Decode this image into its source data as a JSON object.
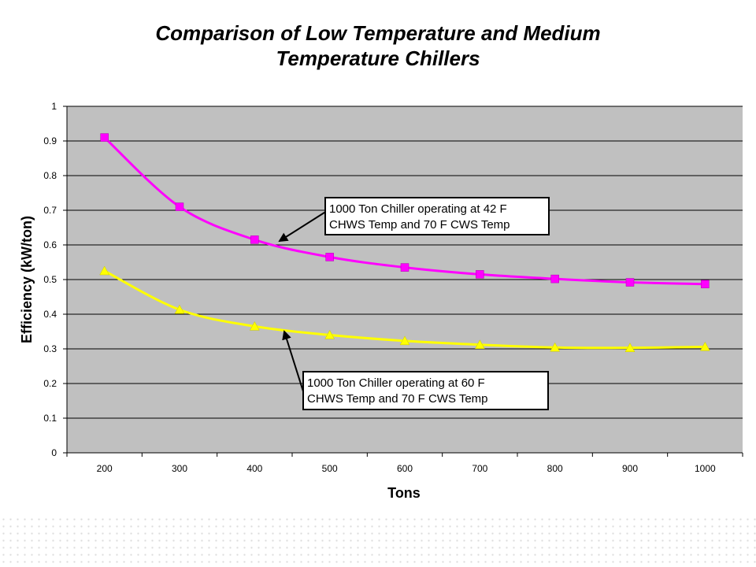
{
  "chart_data": {
    "type": "line",
    "title_line1": "Comparison of Low Temperature and Medium",
    "title_line2": "Temperature Chillers",
    "xlabel": "Tons",
    "ylabel": "Efficiency (kW/ton)",
    "categories": [
      "200",
      "300",
      "400",
      "500",
      "600",
      "700",
      "800",
      "900",
      "1000"
    ],
    "ylim": [
      0,
      1
    ],
    "yticks": [
      "0",
      "0.1",
      "0.2",
      "0.3",
      "0.4",
      "0.5",
      "0.6",
      "0.7",
      "0.8",
      "0.9",
      "1"
    ],
    "grid": true,
    "series": [
      {
        "values": [
          0.91,
          0.71,
          0.615,
          0.565,
          0.535,
          0.515,
          0.502,
          0.492,
          0.487
        ],
        "color": "#ff00ff",
        "marker": "square",
        "annotation_line1": "1000 Ton Chiller operating at 42 F",
        "annotation_line2": "CHWS Temp and 70 F CWS Temp"
      },
      {
        "values": [
          0.525,
          0.413,
          0.365,
          0.34,
          0.323,
          0.312,
          0.304,
          0.303,
          0.306
        ],
        "color": "#ffff00",
        "marker": "triangle",
        "annotation_line1": "1000 Ton Chiller operating at 60 F",
        "annotation_line2": "CHWS Temp and 70 F CWS Temp"
      }
    ],
    "plot_background": "#c0c0c0"
  }
}
